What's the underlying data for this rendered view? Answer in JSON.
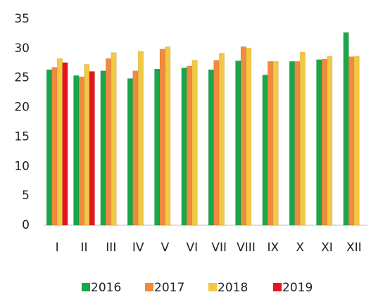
{
  "chart_data": {
    "type": "bar",
    "categories": [
      "I",
      "II",
      "III",
      "IV",
      "V",
      "VI",
      "VII",
      "VIII",
      "IX",
      "X",
      "XI",
      "XII"
    ],
    "series": [
      {
        "name": "2016",
        "color": "#1ba64a",
        "values": [
          26.4,
          25.4,
          26.2,
          24.9,
          26.5,
          26.7,
          26.4,
          27.9,
          25.5,
          27.8,
          28.1,
          32.7
        ]
      },
      {
        "name": "2017",
        "color": "#f08a3c",
        "values": [
          26.8,
          25.2,
          28.3,
          26.2,
          29.9,
          27.0,
          28.0,
          30.3,
          27.8,
          27.8,
          28.2,
          28.6
        ]
      },
      {
        "name": "2018",
        "color": "#f2c844",
        "values": [
          28.3,
          27.3,
          29.3,
          29.5,
          30.3,
          28.0,
          29.2,
          30.1,
          27.8,
          29.4,
          28.7,
          28.7
        ]
      },
      {
        "name": "2019",
        "color": "#e8141c",
        "values": [
          27.6,
          26.1,
          null,
          null,
          null,
          null,
          null,
          null,
          null,
          null,
          null,
          null
        ]
      }
    ],
    "ylim": [
      0,
      35
    ],
    "yticks": [
      0,
      5,
      10,
      15,
      20,
      25,
      30,
      35
    ],
    "grid": false,
    "legend": "bottom"
  }
}
